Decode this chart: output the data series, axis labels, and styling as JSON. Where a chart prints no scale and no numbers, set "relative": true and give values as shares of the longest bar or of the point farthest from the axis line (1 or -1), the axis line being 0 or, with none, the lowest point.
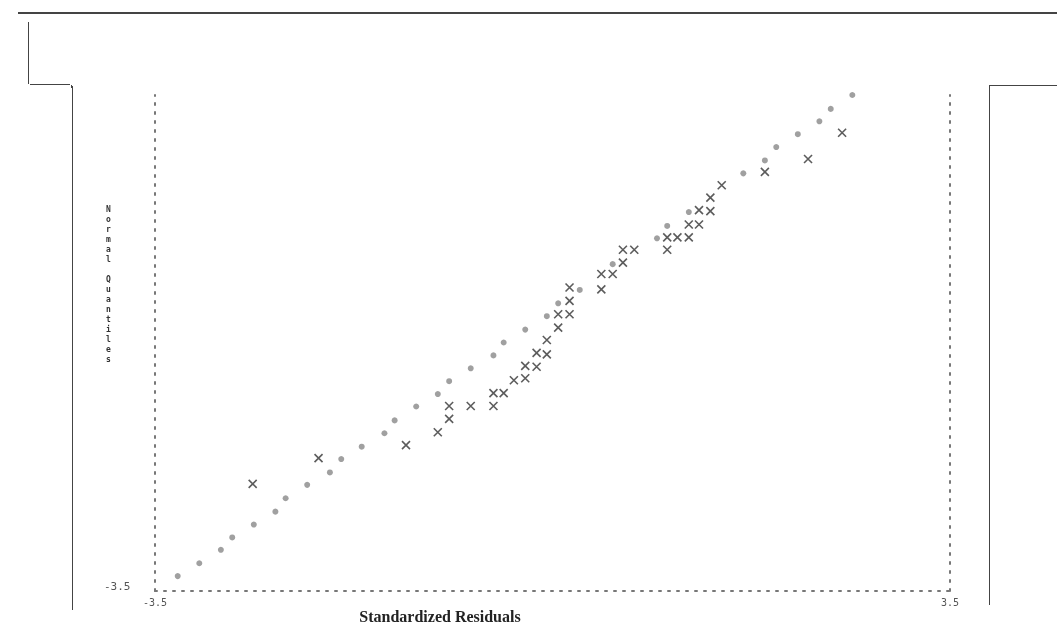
{
  "chart_data": {
    "type": "scatter",
    "xlabel": "Standardized Residuals",
    "ylabel": "Normal Quantiles",
    "relative": true,
    "xlim": [
      -3.5,
      3.5
    ],
    "xticks": [
      -3.5,
      3.5
    ],
    "grid": false,
    "annotations": [
      "-3.5"
    ],
    "series": [
      {
        "color": "#888888",
        "marker": "circle",
        "x": [
          -3.3,
          -3.11,
          -2.92,
          -2.82,
          -2.63,
          -2.44,
          -2.35,
          -2.16,
          -1.96,
          -1.86,
          -1.68,
          -1.48,
          -1.39,
          -1.2,
          -1.01,
          -0.91,
          -0.72,
          -0.52,
          -0.43,
          -0.24,
          -0.05,
          0.05,
          0.24,
          0.53,
          0.92,
          1.01,
          1.2,
          1.68,
          1.87,
          1.97,
          2.16,
          2.35,
          2.45,
          2.64
        ],
        "values": [
          0.03,
          0.056,
          0.083,
          0.108,
          0.134,
          0.16,
          0.187,
          0.214,
          0.239,
          0.266,
          0.291,
          0.318,
          0.344,
          0.372,
          0.397,
          0.423,
          0.449,
          0.475,
          0.501,
          0.527,
          0.554,
          0.58,
          0.607,
          0.659,
          0.711,
          0.736,
          0.764,
          0.842,
          0.868,
          0.895,
          0.921,
          0.947,
          0.972,
          1
        ]
      },
      {
        "color": "#333333",
        "marker": "cross",
        "x": [
          -2.64,
          -2.06,
          -1.29,
          -1.01,
          -0.91,
          -0.91,
          -0.72,
          -0.52,
          -0.52,
          -0.43,
          -0.34,
          -0.24,
          -0.24,
          -0.14,
          -0.14,
          -0.05,
          -0.05,
          0.05,
          0.05,
          0.15,
          0.15,
          0.15,
          0.43,
          0.43,
          0.53,
          0.62,
          0.62,
          0.72,
          1.01,
          1.01,
          1.1,
          1.2,
          1.2,
          1.29,
          1.29,
          1.39,
          1.39,
          1.49,
          1.87,
          2.25,
          2.55
        ],
        "values": [
          0.216,
          0.268,
          0.294,
          0.32,
          0.347,
          0.373,
          0.373,
          0.373,
          0.399,
          0.399,
          0.425,
          0.429,
          0.454,
          0.452,
          0.48,
          0.477,
          0.506,
          0.531,
          0.558,
          0.558,
          0.585,
          0.612,
          0.608,
          0.639,
          0.639,
          0.662,
          0.688,
          0.688,
          0.688,
          0.713,
          0.713,
          0.713,
          0.739,
          0.739,
          0.768,
          0.766,
          0.793,
          0.818,
          0.845,
          0.871,
          0.924
        ]
      }
    ]
  }
}
